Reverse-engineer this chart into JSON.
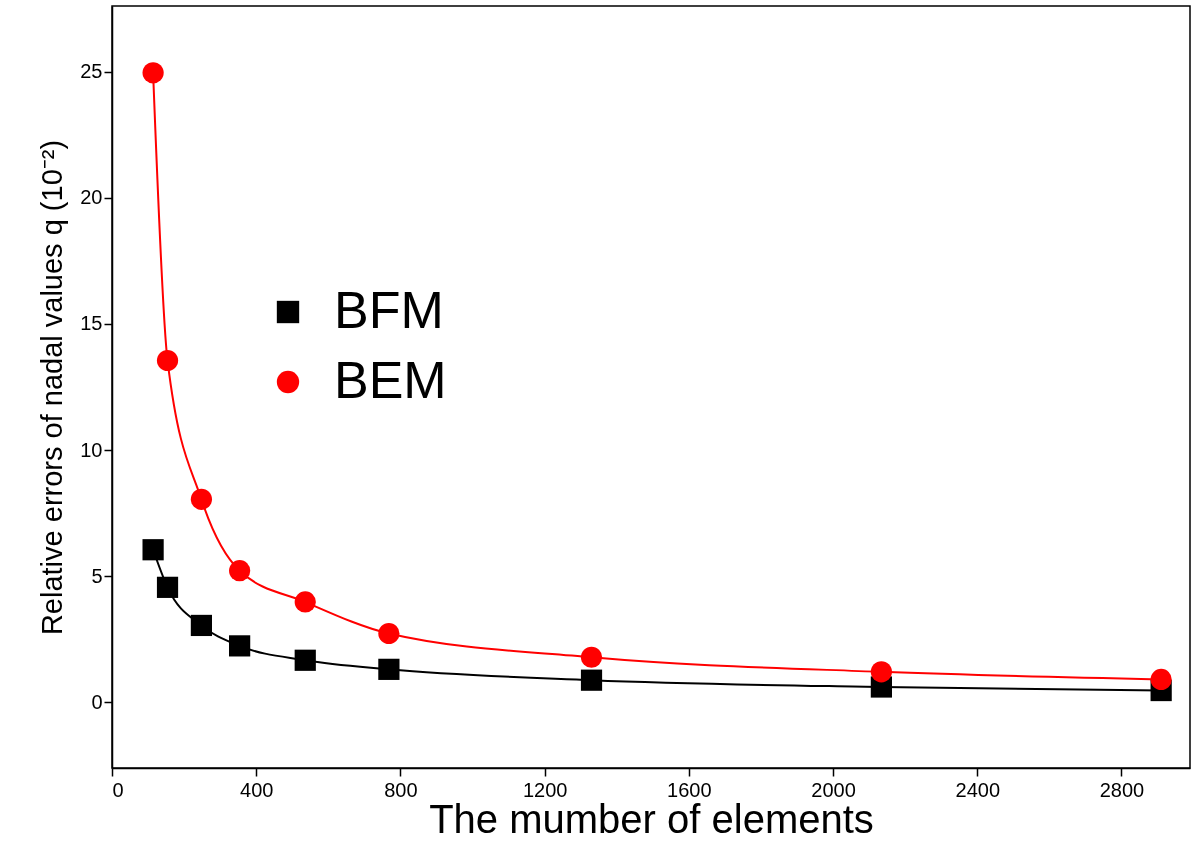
{
  "chart_data": {
    "type": "line",
    "xlabel": "The mumber of elements",
    "ylabel": "Relative errors of nadal values q (10⁻²)",
    "x": [
      114,
      154,
      248,
      354,
      536,
      768,
      1330,
      2134,
      2910
    ],
    "series": [
      {
        "name": "BFM",
        "color": "#000000",
        "marker": "square",
        "values": [
          6.05,
          4.56,
          3.05,
          2.24,
          1.67,
          1.31,
          0.88,
          0.61,
          0.47
        ]
      },
      {
        "name": "BEM",
        "color": "#ff0000",
        "marker": "circle",
        "values": [
          24.95,
          13.55,
          8.05,
          5.22,
          3.98,
          2.73,
          1.79,
          1.21,
          0.91
        ]
      }
    ],
    "xlim": [
      0,
      2990
    ],
    "xticks": [
      0,
      400,
      800,
      1200,
      1600,
      2000,
      2400,
      2800
    ],
    "ylim": [
      -2.6,
      27.6
    ],
    "yticks": [
      0,
      5,
      10,
      15,
      20,
      25
    ],
    "grid": false,
    "legend": "left",
    "line_style": "solid"
  }
}
